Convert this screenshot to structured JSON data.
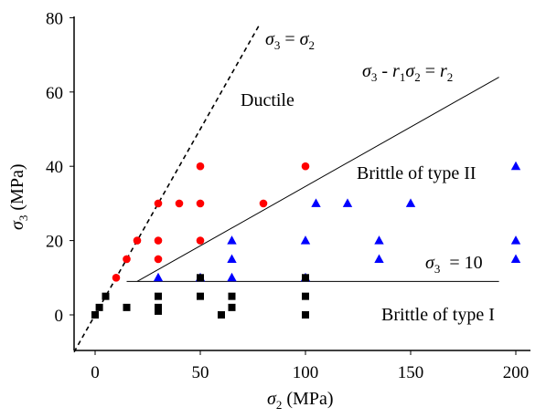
{
  "chart_data": {
    "type": "scatter",
    "xlabel": {
      "main": "σ",
      "sub": "2",
      "rest": " (MPa)"
    },
    "ylabel": {
      "main": "σ",
      "sub": "3",
      "rest": " (MPa)"
    },
    "xlim": [
      -10,
      203
    ],
    "ylim": [
      -10,
      80
    ],
    "xticks": [
      0,
      50,
      100,
      150,
      200
    ],
    "yticks": [
      0,
      20,
      40,
      60,
      80
    ],
    "grid": false,
    "legend": "none",
    "series": [
      {
        "marker": "circle",
        "color": "#ff0000",
        "points": [
          [
            10,
            10
          ],
          [
            15,
            15
          ],
          [
            20,
            20
          ],
          [
            30,
            30
          ],
          [
            30,
            20
          ],
          [
            30,
            15
          ],
          [
            40,
            30
          ],
          [
            50,
            40
          ],
          [
            50,
            30
          ],
          [
            50,
            20
          ],
          [
            80,
            30
          ],
          [
            100,
            40
          ]
        ]
      },
      {
        "marker": "triangle",
        "color": "#0000ff",
        "points": [
          [
            30,
            10
          ],
          [
            50,
            10
          ],
          [
            65,
            20
          ],
          [
            65,
            15
          ],
          [
            65,
            10
          ],
          [
            100,
            20
          ],
          [
            100,
            10
          ],
          [
            105,
            30
          ],
          [
            120,
            30
          ],
          [
            135,
            20
          ],
          [
            135,
            15
          ],
          [
            150,
            30
          ],
          [
            200,
            40
          ],
          [
            200,
            20
          ],
          [
            200,
            15
          ]
        ]
      },
      {
        "marker": "square",
        "color": "#000000",
        "points": [
          [
            0,
            0
          ],
          [
            2,
            2
          ],
          [
            5,
            5
          ],
          [
            15,
            2
          ],
          [
            30,
            5
          ],
          [
            30,
            2
          ],
          [
            30,
            1
          ],
          [
            50,
            10
          ],
          [
            50,
            5
          ],
          [
            60,
            0
          ],
          [
            65,
            5
          ],
          [
            65,
            2
          ],
          [
            100,
            10
          ],
          [
            100,
            5
          ],
          [
            100,
            0
          ]
        ]
      }
    ],
    "lines": [
      {
        "style": "dashed",
        "from": [
          -10,
          -10
        ],
        "to": [
          78,
          78
        ]
      },
      {
        "style": "solid",
        "from": [
          20,
          9
        ],
        "to": [
          192,
          64
        ]
      },
      {
        "style": "solid",
        "from": [
          15,
          9
        ],
        "to": [
          192,
          9
        ]
      }
    ],
    "annotations": {
      "eq1": {
        "a": "σ",
        "a_sub": "3",
        "mid": " = ",
        "b": "σ",
        "b_sub": "2"
      },
      "eq2": {
        "a": "σ",
        "a_sub": "3",
        "op": " - ",
        "r1": "r",
        "r1_sub": "1",
        "b": "σ",
        "b_sub": "2",
        "eq": " = ",
        "r2": "r",
        "r2_sub": "2"
      },
      "eq3": {
        "a": "σ",
        "a_sub": "3",
        "rest": "  = 10"
      },
      "ductile": "Ductile",
      "brittle2": "Brittle of type II",
      "brittle1": "Brittle of type I"
    }
  }
}
